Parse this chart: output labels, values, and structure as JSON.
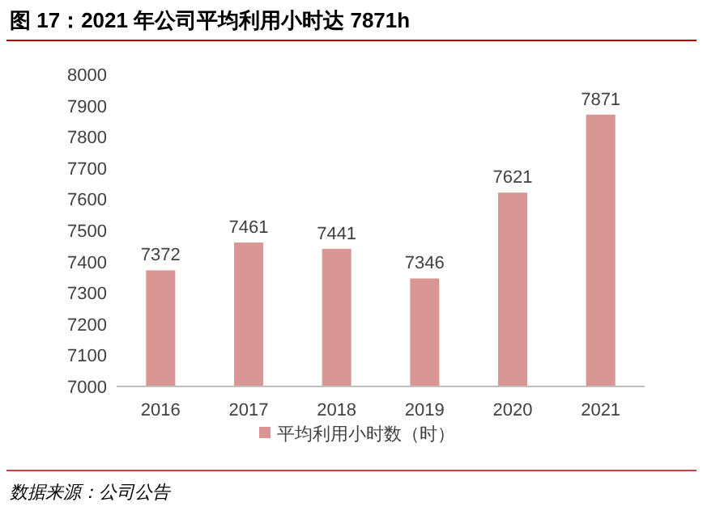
{
  "chart_data": {
    "type": "bar",
    "title": "图 17：2021 年公司平均利用小时达 7871h",
    "categories": [
      "2016",
      "2017",
      "2018",
      "2019",
      "2020",
      "2021"
    ],
    "series": [
      {
        "name": "平均利用小时数（时）",
        "color": "#d99694",
        "values": [
          7372,
          7461,
          7441,
          7346,
          7621,
          7871
        ]
      }
    ],
    "ylim": [
      7000,
      8000
    ],
    "yticks": [
      7000,
      7100,
      7200,
      7300,
      7400,
      7500,
      7600,
      7700,
      7800,
      7900,
      8000
    ],
    "data_labels": true,
    "legend": "bottom",
    "annotations": [
      "数据来源：公司公告"
    ]
  }
}
